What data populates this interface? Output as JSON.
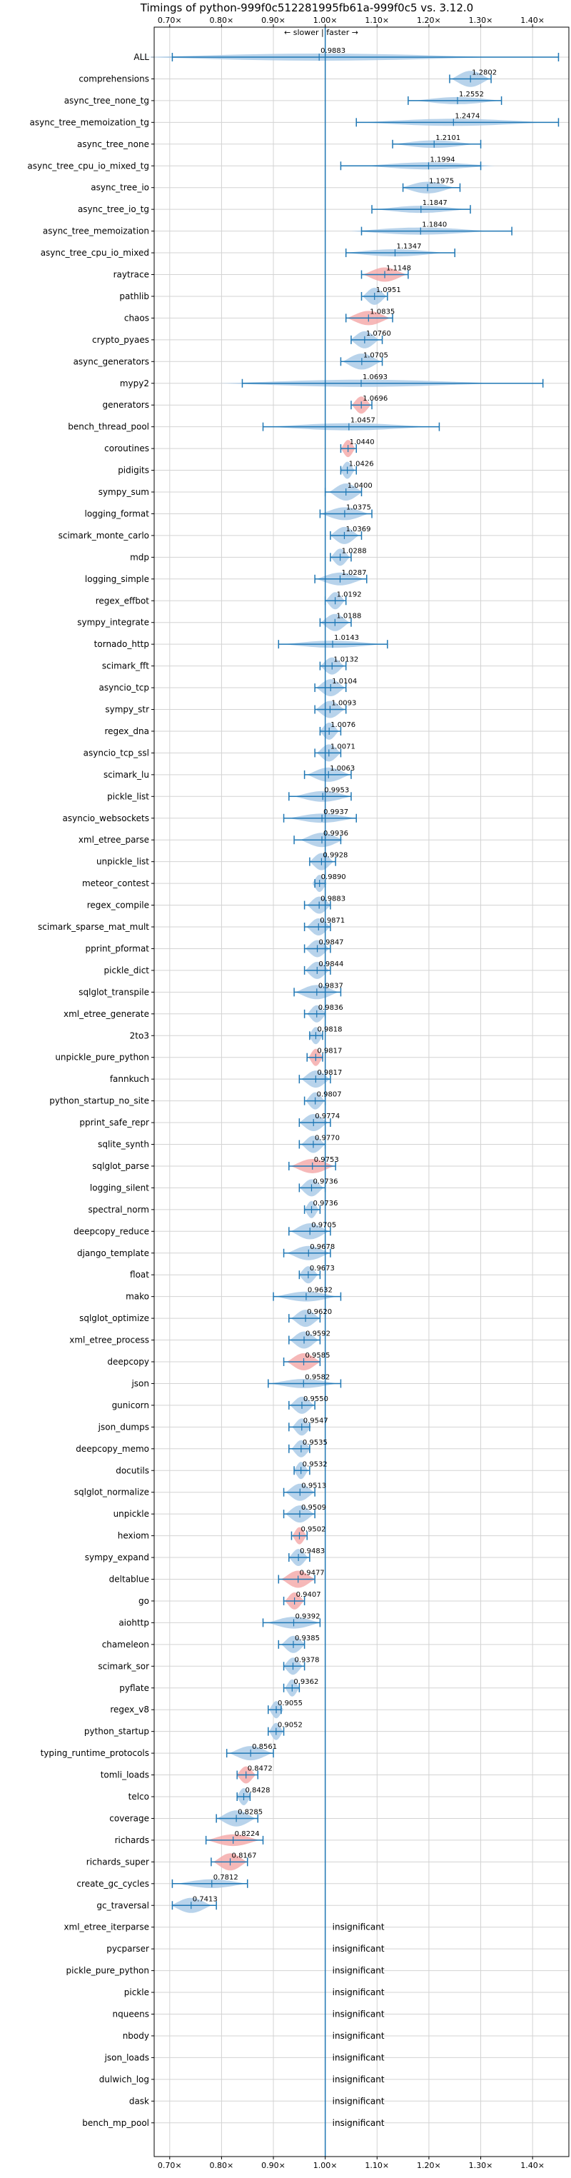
{
  "chart_data": {
    "type": "violin",
    "title": "Timings of python-999f0c512281995fb61a-999f0c5 vs. 3.12.0",
    "subtitle": "← slower | faster →",
    "xlim": [
      0.67,
      1.47
    ],
    "x_ticks": [
      0.7,
      0.8,
      0.9,
      1.0,
      1.1,
      1.2,
      1.3,
      1.4
    ],
    "x_tick_labels": [
      "0.70×",
      "0.80×",
      "0.90×",
      "1.00×",
      "1.10×",
      "1.20×",
      "1.30×",
      "1.40×"
    ],
    "reference_line": 1.0,
    "grid": true,
    "colors": {
      "normal": "#a6c8e6",
      "highlight": "#f4a6a6",
      "whisker": "#1f77b4",
      "refline": "#1f77b4"
    },
    "insignificant_label": "insignificant",
    "benchmarks": [
      {
        "name": "ALL",
        "mean": 0.9883,
        "min": 0.705,
        "max": 1.45,
        "sig": true,
        "hl": false,
        "label": "0.9883"
      },
      {
        "name": "comprehensions",
        "mean": 1.2802,
        "min": 1.24,
        "max": 1.32,
        "sig": true,
        "hl": false,
        "label": "1.2802"
      },
      {
        "name": "async_tree_none_tg",
        "mean": 1.2552,
        "min": 1.16,
        "max": 1.34,
        "sig": true,
        "hl": false,
        "label": "1.2552"
      },
      {
        "name": "async_tree_memoization_tg",
        "mean": 1.2474,
        "min": 1.06,
        "max": 1.45,
        "sig": true,
        "hl": false,
        "label": "1.2474"
      },
      {
        "name": "async_tree_none",
        "mean": 1.2101,
        "min": 1.13,
        "max": 1.3,
        "sig": true,
        "hl": false,
        "label": "1.2101"
      },
      {
        "name": "async_tree_cpu_io_mixed_tg",
        "mean": 1.1994,
        "min": 1.03,
        "max": 1.3,
        "sig": true,
        "hl": false,
        "label": "1.1994"
      },
      {
        "name": "async_tree_io",
        "mean": 1.1975,
        "min": 1.15,
        "max": 1.26,
        "sig": true,
        "hl": false,
        "label": "1.1975"
      },
      {
        "name": "async_tree_io_tg",
        "mean": 1.1847,
        "min": 1.09,
        "max": 1.28,
        "sig": true,
        "hl": false,
        "label": "1.1847"
      },
      {
        "name": "async_tree_memoization",
        "mean": 1.184,
        "min": 1.07,
        "max": 1.36,
        "sig": true,
        "hl": false,
        "label": "1.1840"
      },
      {
        "name": "async_tree_cpu_io_mixed",
        "mean": 1.1347,
        "min": 1.04,
        "max": 1.25,
        "sig": true,
        "hl": false,
        "label": "1.1347"
      },
      {
        "name": "raytrace",
        "mean": 1.1148,
        "min": 1.07,
        "max": 1.16,
        "sig": true,
        "hl": true,
        "label": "1.1148"
      },
      {
        "name": "pathlib",
        "mean": 1.0951,
        "min": 1.07,
        "max": 1.12,
        "sig": true,
        "hl": false,
        "label": "1.0951"
      },
      {
        "name": "chaos",
        "mean": 1.0835,
        "min": 1.04,
        "max": 1.13,
        "sig": true,
        "hl": true,
        "label": "1.0835"
      },
      {
        "name": "crypto_pyaes",
        "mean": 1.076,
        "min": 1.05,
        "max": 1.11,
        "sig": true,
        "hl": false,
        "label": "1.0760"
      },
      {
        "name": "async_generators",
        "mean": 1.0705,
        "min": 1.03,
        "max": 1.11,
        "sig": true,
        "hl": false,
        "label": "1.0705"
      },
      {
        "name": "mypy2",
        "mean": 1.0693,
        "min": 0.84,
        "max": 1.42,
        "sig": true,
        "hl": false,
        "label": "1.0693"
      },
      {
        "name": "generators",
        "mean": 1.0696,
        "min": 1.05,
        "max": 1.09,
        "sig": true,
        "hl": true,
        "label": "1.0696"
      },
      {
        "name": "bench_thread_pool",
        "mean": 1.0457,
        "min": 0.88,
        "max": 1.22,
        "sig": true,
        "hl": false,
        "label": "1.0457"
      },
      {
        "name": "coroutines",
        "mean": 1.044,
        "min": 1.03,
        "max": 1.06,
        "sig": true,
        "hl": true,
        "label": "1.0440"
      },
      {
        "name": "pidigits",
        "mean": 1.0426,
        "min": 1.03,
        "max": 1.06,
        "sig": true,
        "hl": false,
        "label": "1.0426"
      },
      {
        "name": "sympy_sum",
        "mean": 1.04,
        "min": 1.0,
        "max": 1.07,
        "sig": true,
        "hl": false,
        "label": "1.0400"
      },
      {
        "name": "logging_format",
        "mean": 1.0375,
        "min": 0.99,
        "max": 1.09,
        "sig": true,
        "hl": false,
        "label": "1.0375"
      },
      {
        "name": "scimark_monte_carlo",
        "mean": 1.0369,
        "min": 1.01,
        "max": 1.07,
        "sig": true,
        "hl": false,
        "label": "1.0369"
      },
      {
        "name": "mdp",
        "mean": 1.0288,
        "min": 1.01,
        "max": 1.05,
        "sig": true,
        "hl": false,
        "label": "1.0288"
      },
      {
        "name": "logging_simple",
        "mean": 1.0287,
        "min": 0.98,
        "max": 1.08,
        "sig": true,
        "hl": false,
        "label": "1.0287"
      },
      {
        "name": "regex_effbot",
        "mean": 1.0192,
        "min": 1.0,
        "max": 1.04,
        "sig": true,
        "hl": false,
        "label": "1.0192"
      },
      {
        "name": "sympy_integrate",
        "mean": 1.0188,
        "min": 0.99,
        "max": 1.05,
        "sig": true,
        "hl": false,
        "label": "1.0188"
      },
      {
        "name": "tornado_http",
        "mean": 1.0143,
        "min": 0.91,
        "max": 1.12,
        "sig": true,
        "hl": false,
        "label": "1.0143"
      },
      {
        "name": "scimark_fft",
        "mean": 1.0132,
        "min": 0.99,
        "max": 1.04,
        "sig": true,
        "hl": false,
        "label": "1.0132"
      },
      {
        "name": "asyncio_tcp",
        "mean": 1.0104,
        "min": 0.98,
        "max": 1.04,
        "sig": true,
        "hl": false,
        "label": "1.0104"
      },
      {
        "name": "sympy_str",
        "mean": 1.0093,
        "min": 0.98,
        "max": 1.04,
        "sig": true,
        "hl": false,
        "label": "1.0093"
      },
      {
        "name": "regex_dna",
        "mean": 1.0076,
        "min": 0.99,
        "max": 1.03,
        "sig": true,
        "hl": false,
        "label": "1.0076"
      },
      {
        "name": "asyncio_tcp_ssl",
        "mean": 1.0071,
        "min": 0.98,
        "max": 1.03,
        "sig": true,
        "hl": false,
        "label": "1.0071"
      },
      {
        "name": "scimark_lu",
        "mean": 1.0063,
        "min": 0.96,
        "max": 1.05,
        "sig": true,
        "hl": false,
        "label": "1.0063"
      },
      {
        "name": "pickle_list",
        "mean": 0.9953,
        "min": 0.93,
        "max": 1.05,
        "sig": true,
        "hl": false,
        "label": "0.9953"
      },
      {
        "name": "asyncio_websockets",
        "mean": 0.9937,
        "min": 0.92,
        "max": 1.06,
        "sig": true,
        "hl": false,
        "label": "0.9937"
      },
      {
        "name": "xml_etree_parse",
        "mean": 0.9936,
        "min": 0.94,
        "max": 1.03,
        "sig": true,
        "hl": false,
        "label": "0.9936"
      },
      {
        "name": "unpickle_list",
        "mean": 0.9928,
        "min": 0.97,
        "max": 1.02,
        "sig": true,
        "hl": false,
        "label": "0.9928"
      },
      {
        "name": "meteor_contest",
        "mean": 0.989,
        "min": 0.98,
        "max": 1.0,
        "sig": true,
        "hl": false,
        "label": "0.9890"
      },
      {
        "name": "regex_compile",
        "mean": 0.9883,
        "min": 0.96,
        "max": 1.01,
        "sig": true,
        "hl": false,
        "label": "0.9883"
      },
      {
        "name": "scimark_sparse_mat_mult",
        "mean": 0.9871,
        "min": 0.96,
        "max": 1.01,
        "sig": true,
        "hl": false,
        "label": "0.9871"
      },
      {
        "name": "pprint_pformat",
        "mean": 0.9847,
        "min": 0.96,
        "max": 1.01,
        "sig": true,
        "hl": false,
        "label": "0.9847"
      },
      {
        "name": "pickle_dict",
        "mean": 0.9844,
        "min": 0.96,
        "max": 1.01,
        "sig": true,
        "hl": false,
        "label": "0.9844"
      },
      {
        "name": "sqlglot_transpile",
        "mean": 0.9837,
        "min": 0.94,
        "max": 1.03,
        "sig": true,
        "hl": false,
        "label": "0.9837"
      },
      {
        "name": "xml_etree_generate",
        "mean": 0.9836,
        "min": 0.96,
        "max": 1.0,
        "sig": true,
        "hl": false,
        "label": "0.9836"
      },
      {
        "name": "2to3",
        "mean": 0.9818,
        "min": 0.97,
        "max": 0.995,
        "sig": true,
        "hl": false,
        "label": "0.9818"
      },
      {
        "name": "unpickle_pure_python",
        "mean": 0.9817,
        "min": 0.965,
        "max": 0.995,
        "sig": true,
        "hl": true,
        "label": "0.9817"
      },
      {
        "name": "fannkuch",
        "mean": 0.9817,
        "min": 0.95,
        "max": 1.01,
        "sig": true,
        "hl": false,
        "label": "0.9817"
      },
      {
        "name": "python_startup_no_site",
        "mean": 0.9807,
        "min": 0.96,
        "max": 1.0,
        "sig": true,
        "hl": false,
        "label": "0.9807"
      },
      {
        "name": "pprint_safe_repr",
        "mean": 0.9774,
        "min": 0.95,
        "max": 1.01,
        "sig": true,
        "hl": false,
        "label": "0.9774"
      },
      {
        "name": "sqlite_synth",
        "mean": 0.977,
        "min": 0.95,
        "max": 1.0,
        "sig": true,
        "hl": false,
        "label": "0.9770"
      },
      {
        "name": "sqlglot_parse",
        "mean": 0.9753,
        "min": 0.93,
        "max": 1.02,
        "sig": true,
        "hl": true,
        "label": "0.9753"
      },
      {
        "name": "logging_silent",
        "mean": 0.9736,
        "min": 0.95,
        "max": 1.0,
        "sig": true,
        "hl": false,
        "label": "0.9736"
      },
      {
        "name": "spectral_norm",
        "mean": 0.9736,
        "min": 0.96,
        "max": 0.99,
        "sig": true,
        "hl": false,
        "label": "0.9736"
      },
      {
        "name": "deepcopy_reduce",
        "mean": 0.9705,
        "min": 0.93,
        "max": 1.01,
        "sig": true,
        "hl": false,
        "label": "0.9705"
      },
      {
        "name": "django_template",
        "mean": 0.9678,
        "min": 0.92,
        "max": 1.01,
        "sig": true,
        "hl": false,
        "label": "0.9678"
      },
      {
        "name": "float",
        "mean": 0.9673,
        "min": 0.95,
        "max": 0.99,
        "sig": true,
        "hl": false,
        "label": "0.9673"
      },
      {
        "name": "mako",
        "mean": 0.9632,
        "min": 0.9,
        "max": 1.03,
        "sig": true,
        "hl": false,
        "label": "0.9632"
      },
      {
        "name": "sqlglot_optimize",
        "mean": 0.962,
        "min": 0.93,
        "max": 0.99,
        "sig": true,
        "hl": false,
        "label": "0.9620"
      },
      {
        "name": "xml_etree_process",
        "mean": 0.9592,
        "min": 0.93,
        "max": 0.99,
        "sig": true,
        "hl": false,
        "label": "0.9592"
      },
      {
        "name": "deepcopy",
        "mean": 0.9585,
        "min": 0.92,
        "max": 0.99,
        "sig": true,
        "hl": true,
        "label": "0.9585"
      },
      {
        "name": "json",
        "mean": 0.9582,
        "min": 0.89,
        "max": 1.03,
        "sig": true,
        "hl": false,
        "label": "0.9582"
      },
      {
        "name": "gunicorn",
        "mean": 0.955,
        "min": 0.93,
        "max": 0.98,
        "sig": true,
        "hl": false,
        "label": "0.9550"
      },
      {
        "name": "json_dumps",
        "mean": 0.9547,
        "min": 0.93,
        "max": 0.97,
        "sig": true,
        "hl": false,
        "label": "0.9547"
      },
      {
        "name": "deepcopy_memo",
        "mean": 0.9535,
        "min": 0.93,
        "max": 0.97,
        "sig": true,
        "hl": false,
        "label": "0.9535"
      },
      {
        "name": "docutils",
        "mean": 0.9532,
        "min": 0.94,
        "max": 0.97,
        "sig": true,
        "hl": false,
        "label": "0.9532"
      },
      {
        "name": "sqlglot_normalize",
        "mean": 0.9513,
        "min": 0.92,
        "max": 0.98,
        "sig": true,
        "hl": false,
        "label": "0.9513"
      },
      {
        "name": "unpickle",
        "mean": 0.9509,
        "min": 0.92,
        "max": 0.98,
        "sig": true,
        "hl": false,
        "label": "0.9509"
      },
      {
        "name": "hexiom",
        "mean": 0.9502,
        "min": 0.935,
        "max": 0.965,
        "sig": true,
        "hl": true,
        "label": "0.9502"
      },
      {
        "name": "sympy_expand",
        "mean": 0.9483,
        "min": 0.93,
        "max": 0.97,
        "sig": true,
        "hl": false,
        "label": "0.9483"
      },
      {
        "name": "deltablue",
        "mean": 0.9477,
        "min": 0.91,
        "max": 0.98,
        "sig": true,
        "hl": true,
        "label": "0.9477"
      },
      {
        "name": "go",
        "mean": 0.9407,
        "min": 0.92,
        "max": 0.96,
        "sig": true,
        "hl": true,
        "label": "0.9407"
      },
      {
        "name": "aiohttp",
        "mean": 0.9392,
        "min": 0.88,
        "max": 0.99,
        "sig": true,
        "hl": false,
        "label": "0.9392"
      },
      {
        "name": "chameleon",
        "mean": 0.9385,
        "min": 0.91,
        "max": 0.96,
        "sig": true,
        "hl": false,
        "label": "0.9385"
      },
      {
        "name": "scimark_sor",
        "mean": 0.9378,
        "min": 0.92,
        "max": 0.96,
        "sig": true,
        "hl": false,
        "label": "0.9378"
      },
      {
        "name": "pyflate",
        "mean": 0.9362,
        "min": 0.92,
        "max": 0.95,
        "sig": true,
        "hl": false,
        "label": "0.9362"
      },
      {
        "name": "regex_v8",
        "mean": 0.9055,
        "min": 0.89,
        "max": 0.915,
        "sig": true,
        "hl": false,
        "label": "0.9055"
      },
      {
        "name": "python_startup",
        "mean": 0.9052,
        "min": 0.89,
        "max": 0.92,
        "sig": true,
        "hl": false,
        "label": "0.9052"
      },
      {
        "name": "typing_runtime_protocols",
        "mean": 0.8561,
        "min": 0.81,
        "max": 0.9,
        "sig": true,
        "hl": false,
        "label": "0.8561"
      },
      {
        "name": "tomli_loads",
        "mean": 0.8472,
        "min": 0.83,
        "max": 0.87,
        "sig": true,
        "hl": true,
        "label": "0.8472"
      },
      {
        "name": "telco",
        "mean": 0.8428,
        "min": 0.83,
        "max": 0.855,
        "sig": true,
        "hl": false,
        "label": "0.8428"
      },
      {
        "name": "coverage",
        "mean": 0.8285,
        "min": 0.79,
        "max": 0.87,
        "sig": true,
        "hl": false,
        "label": "0.8285"
      },
      {
        "name": "richards",
        "mean": 0.8224,
        "min": 0.77,
        "max": 0.88,
        "sig": true,
        "hl": true,
        "label": "0.8224"
      },
      {
        "name": "richards_super",
        "mean": 0.8167,
        "min": 0.78,
        "max": 0.85,
        "sig": true,
        "hl": true,
        "label": "0.8167"
      },
      {
        "name": "create_gc_cycles",
        "mean": 0.7812,
        "min": 0.705,
        "max": 0.85,
        "sig": true,
        "hl": false,
        "label": "0.7812"
      },
      {
        "name": "gc_traversal",
        "mean": 0.7413,
        "min": 0.705,
        "max": 0.79,
        "sig": true,
        "hl": false,
        "label": "0.7413"
      },
      {
        "name": "xml_etree_iterparse",
        "sig": false
      },
      {
        "name": "pycparser",
        "sig": false
      },
      {
        "name": "pickle_pure_python",
        "sig": false
      },
      {
        "name": "pickle",
        "sig": false
      },
      {
        "name": "nqueens",
        "sig": false
      },
      {
        "name": "nbody",
        "sig": false
      },
      {
        "name": "json_loads",
        "sig": false
      },
      {
        "name": "dulwich_log",
        "sig": false
      },
      {
        "name": "dask",
        "sig": false
      },
      {
        "name": "bench_mp_pool",
        "sig": false
      }
    ]
  }
}
